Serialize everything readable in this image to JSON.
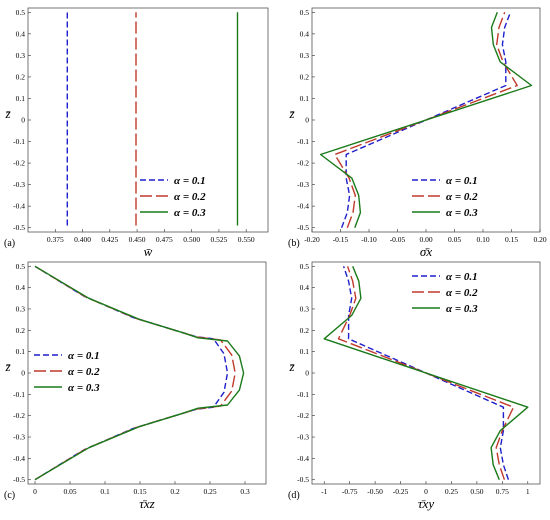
{
  "colors": {
    "blue": "#1f1fcc",
    "red": "#c0392b",
    "green": "#1a7a1a",
    "frame": "#555555"
  },
  "chart_data": [
    {
      "type": "line",
      "panel_label": "(a)",
      "xlabel": "w̄",
      "ylabel": "z̄",
      "xlim": [
        0.35,
        0.57
      ],
      "ylim": [
        -0.52,
        0.52
      ],
      "xticks": [
        0.375,
        0.4,
        0.425,
        0.45,
        0.475,
        0.5,
        0.525,
        0.55
      ],
      "xtick_labels": [
        "0.375",
        "0.400",
        "0.425",
        "0.450",
        "0.475",
        "0.500",
        "0.525",
        "0.550"
      ],
      "yticks": [
        -0.5,
        -0.4,
        -0.3,
        -0.2,
        -0.1,
        0,
        0.1,
        0.2,
        0.3,
        0.4,
        0.5
      ],
      "ytick_labels": [
        "-0.5",
        "-0.4",
        "-0.3",
        "-0.2",
        "-0.1",
        "0",
        "0.1",
        "0.2",
        "0.3",
        "0.4",
        "0.5"
      ],
      "legend_position": "bottom-right",
      "series": [
        {
          "name": "α = 0.1",
          "label": "α = 0.1",
          "color": "#1f1fcc",
          "dash": "short",
          "x": [
            0.386,
            0.386
          ],
          "y": [
            -0.49,
            0.5
          ]
        },
        {
          "name": "α = 0.2",
          "label": "α = 0.2",
          "color": "#c0392b",
          "dash": "long",
          "x": [
            0.449,
            0.449
          ],
          "y": [
            -0.49,
            0.5
          ]
        },
        {
          "name": "α = 0.3",
          "label": "α = 0.3",
          "color": "#1a7a1a",
          "dash": "solid",
          "x": [
            0.542,
            0.542
          ],
          "y": [
            -0.49,
            0.5
          ]
        }
      ]
    },
    {
      "type": "line",
      "panel_label": "(b)",
      "xlabel": "σ̄x",
      "ylabel": "z̄",
      "xlim": [
        -0.2,
        0.2
      ],
      "ylim": [
        -0.52,
        0.52
      ],
      "xticks": [
        -0.2,
        -0.15,
        -0.1,
        -0.05,
        0,
        0.05,
        0.1,
        0.15,
        0.2
      ],
      "xtick_labels": [
        "-0.20",
        "-0.15",
        "-0.10",
        "-0.05",
        "0.00",
        "0.05",
        "0.10",
        "0.15",
        "0.20"
      ],
      "yticks": [
        -0.5,
        -0.4,
        -0.3,
        -0.2,
        -0.1,
        0,
        0.1,
        0.2,
        0.3,
        0.4,
        0.5
      ],
      "ytick_labels": [
        "-0.5",
        "-0.4",
        "-0.3",
        "-0.2",
        "-0.1",
        "0",
        "0.1",
        "0.2",
        "0.3",
        "0.4",
        "0.5"
      ],
      "legend_position": "bottom-right",
      "series": [
        {
          "name": "α = 0.1",
          "label": "α = 0.1",
          "color": "#1f1fcc",
          "dash": "short",
          "x": [
            -0.148,
            -0.138,
            -0.134,
            -0.14,
            -0.14,
            0.14,
            0.14,
            0.134,
            0.138,
            0.148
          ],
          "y": [
            -0.5,
            -0.43,
            -0.35,
            -0.27,
            -0.16,
            0.16,
            0.27,
            0.35,
            0.43,
            0.5
          ]
        },
        {
          "name": "α = 0.2",
          "label": "α = 0.2",
          "color": "#c0392b",
          "dash": "long",
          "x": [
            -0.138,
            -0.128,
            -0.124,
            -0.135,
            -0.16,
            0.16,
            0.135,
            0.124,
            0.128,
            0.138
          ],
          "y": [
            -0.5,
            -0.43,
            -0.35,
            -0.27,
            -0.16,
            0.16,
            0.27,
            0.35,
            0.43,
            0.5
          ]
        },
        {
          "name": "α = 0.3",
          "label": "α = 0.3",
          "color": "#1a7a1a",
          "dash": "solid",
          "x": [
            -0.125,
            -0.115,
            -0.118,
            -0.13,
            -0.185,
            0.185,
            0.13,
            0.118,
            0.115,
            0.125
          ],
          "y": [
            -0.5,
            -0.43,
            -0.35,
            -0.27,
            -0.16,
            0.16,
            0.27,
            0.35,
            0.43,
            0.5
          ]
        }
      ]
    },
    {
      "type": "line",
      "panel_label": "(c)",
      "xlabel": "τ̄xz",
      "ylabel": "z̄",
      "xlim": [
        -0.01,
        0.33
      ],
      "ylim": [
        -0.52,
        0.52
      ],
      "xticks": [
        0,
        0.05,
        0.1,
        0.15,
        0.2,
        0.25,
        0.3
      ],
      "xtick_labels": [
        "0",
        "0.05",
        "0.1",
        "0.15",
        "0.2",
        "0.25",
        "0.3"
      ],
      "yticks": [
        -0.5,
        -0.4,
        -0.3,
        -0.2,
        -0.1,
        0,
        0.1,
        0.2,
        0.3,
        0.4,
        0.5
      ],
      "ytick_labels": [
        "-0.5",
        "-0.4",
        "-0.3",
        "-0.2",
        "-0.1",
        "0",
        "0.1",
        "0.2",
        "0.3",
        "0.4",
        "0.5"
      ],
      "legend_position": "middle-left",
      "series": [
        {
          "name": "α = 0.1",
          "label": "α = 0.1",
          "color": "#1f1fcc",
          "dash": "short",
          "x": [
            0,
            0.07,
            0.14,
            0.2,
            0.23,
            0.255,
            0.27,
            0.275,
            0.27,
            0.255,
            0.23,
            0.2,
            0.14,
            0.07,
            0
          ],
          "y": [
            -0.5,
            -0.36,
            -0.26,
            -0.2,
            -0.17,
            -0.16,
            -0.09,
            0,
            0.09,
            0.16,
            0.17,
            0.2,
            0.26,
            0.36,
            0.5
          ]
        },
        {
          "name": "α = 0.2",
          "label": "α = 0.2",
          "color": "#c0392b",
          "dash": "long",
          "x": [
            0,
            0.073,
            0.145,
            0.205,
            0.232,
            0.265,
            0.281,
            0.286,
            0.281,
            0.265,
            0.232,
            0.205,
            0.145,
            0.073,
            0
          ],
          "y": [
            -0.5,
            -0.355,
            -0.255,
            -0.195,
            -0.168,
            -0.155,
            -0.085,
            0,
            0.085,
            0.155,
            0.168,
            0.195,
            0.255,
            0.355,
            0.5
          ]
        },
        {
          "name": "α = 0.3",
          "label": "α = 0.3",
          "color": "#1a7a1a",
          "dash": "solid",
          "x": [
            0,
            0.077,
            0.15,
            0.21,
            0.233,
            0.275,
            0.292,
            0.298,
            0.292,
            0.275,
            0.233,
            0.21,
            0.15,
            0.077,
            0
          ],
          "y": [
            -0.5,
            -0.35,
            -0.25,
            -0.19,
            -0.165,
            -0.15,
            -0.08,
            0,
            0.08,
            0.15,
            0.165,
            0.19,
            0.25,
            0.35,
            0.5
          ]
        }
      ]
    },
    {
      "type": "line",
      "panel_label": "(d)",
      "xlabel": "τ̄xy",
      "ylabel": "z̄",
      "xlim": [
        -1.12,
        1.12
      ],
      "ylim": [
        -0.52,
        0.52
      ],
      "xticks": [
        -1,
        -0.75,
        -0.5,
        -0.25,
        0,
        0.25,
        0.5,
        0.75,
        1
      ],
      "xtick_labels": [
        "-1",
        "-0.75",
        "-0.50",
        "-0.25",
        "0",
        "0.25",
        "0.50",
        "0.75",
        "1"
      ],
      "yticks": [
        -0.5,
        -0.4,
        -0.3,
        -0.2,
        -0.1,
        0,
        0.1,
        0.2,
        0.3,
        0.4,
        0.5
      ],
      "ytick_labels": [
        "-0.5",
        "-0.4",
        "-0.3",
        "-0.2",
        "-0.1",
        "0",
        "0.1",
        "0.2",
        "0.3",
        "0.4",
        "0.5"
      ],
      "legend_position": "top-right",
      "series": [
        {
          "name": "α = 0.1",
          "label": "α = 0.1",
          "color": "#1f1fcc",
          "dash": "short",
          "x": [
            0.81,
            0.76,
            0.73,
            0.76,
            0.76,
            -0.76,
            -0.76,
            -0.73,
            -0.76,
            -0.81
          ],
          "y": [
            -0.5,
            -0.43,
            -0.35,
            -0.27,
            -0.16,
            0.16,
            0.27,
            0.35,
            0.43,
            0.5
          ]
        },
        {
          "name": "α = 0.2",
          "label": "α = 0.2",
          "color": "#c0392b",
          "dash": "long",
          "x": [
            0.77,
            0.72,
            0.69,
            0.75,
            0.86,
            -0.86,
            -0.75,
            -0.69,
            -0.72,
            -0.77
          ],
          "y": [
            -0.5,
            -0.43,
            -0.35,
            -0.27,
            -0.16,
            0.16,
            0.27,
            0.35,
            0.43,
            0.5
          ]
        },
        {
          "name": "α = 0.3",
          "label": "α = 0.3",
          "color": "#1a7a1a",
          "dash": "solid",
          "x": [
            0.72,
            0.66,
            0.64,
            0.73,
            1.0,
            -1.0,
            -0.73,
            -0.64,
            -0.66,
            -0.72
          ],
          "y": [
            -0.5,
            -0.43,
            -0.35,
            -0.27,
            -0.16,
            0.16,
            0.27,
            0.35,
            0.43,
            0.5
          ]
        }
      ]
    }
  ]
}
